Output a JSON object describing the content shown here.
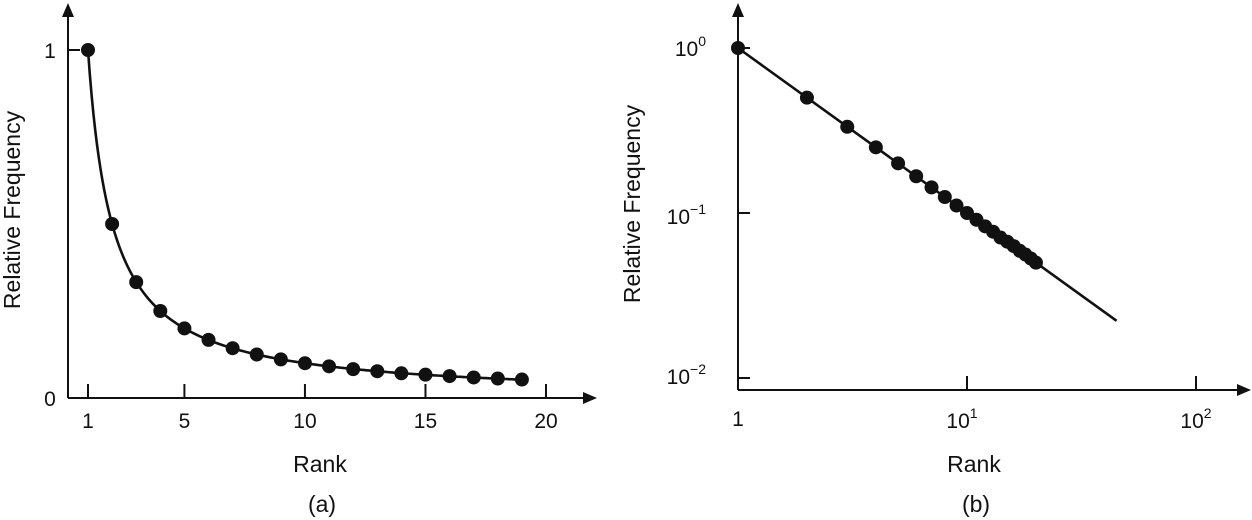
{
  "colors": {
    "ink": "#111111",
    "background": "#ffffff"
  },
  "chart_data": [
    {
      "type": "line",
      "caption": "(a)",
      "xlabel": "Rank",
      "ylabel": "Relative Frequency",
      "xticks": [
        "1",
        "5",
        "10",
        "15",
        "20"
      ],
      "yticks": [
        "0",
        "1"
      ],
      "xlim": [
        1,
        20
      ],
      "ylim": [
        0,
        1
      ],
      "grid": false,
      "curve": "y = 1/x",
      "markers": {
        "x": [
          1,
          2,
          3,
          4,
          5,
          6,
          7,
          8,
          9,
          10,
          11,
          12,
          13,
          14,
          15,
          16,
          17,
          18,
          19
        ],
        "y": [
          1.0,
          0.5,
          0.333,
          0.25,
          0.2,
          0.167,
          0.143,
          0.125,
          0.111,
          0.1,
          0.091,
          0.083,
          0.077,
          0.071,
          0.067,
          0.063,
          0.059,
          0.056,
          0.053
        ]
      },
      "curve_range": [
        1,
        19
      ]
    },
    {
      "type": "line",
      "caption": "(b)",
      "xlabel": "Rank",
      "ylabel": "Relative Frequency",
      "xscale": "log",
      "yscale": "log",
      "xticks": [
        {
          "base": "1",
          "exp": ""
        },
        {
          "base": "10",
          "exp": "1"
        },
        {
          "base": "10",
          "exp": "2"
        }
      ],
      "yticks": [
        {
          "base": "10",
          "exp": "0"
        },
        {
          "base": "10",
          "exp": "−1"
        },
        {
          "base": "10",
          "exp": "−2"
        }
      ],
      "xlim": [
        1,
        100
      ],
      "ylim": [
        0.01,
        1
      ],
      "grid": false,
      "curve": "y = 1/x",
      "markers": {
        "x": [
          1,
          2,
          3,
          4,
          5,
          6,
          7,
          8,
          9,
          10,
          11,
          12,
          13,
          14,
          15,
          16,
          17,
          18,
          19,
          20
        ],
        "y": [
          1.0,
          0.5,
          0.333,
          0.25,
          0.2,
          0.167,
          0.143,
          0.125,
          0.111,
          0.1,
          0.091,
          0.083,
          0.077,
          0.071,
          0.067,
          0.063,
          0.059,
          0.056,
          0.053,
          0.05
        ]
      },
      "curve_range": [
        1,
        45
      ]
    }
  ]
}
